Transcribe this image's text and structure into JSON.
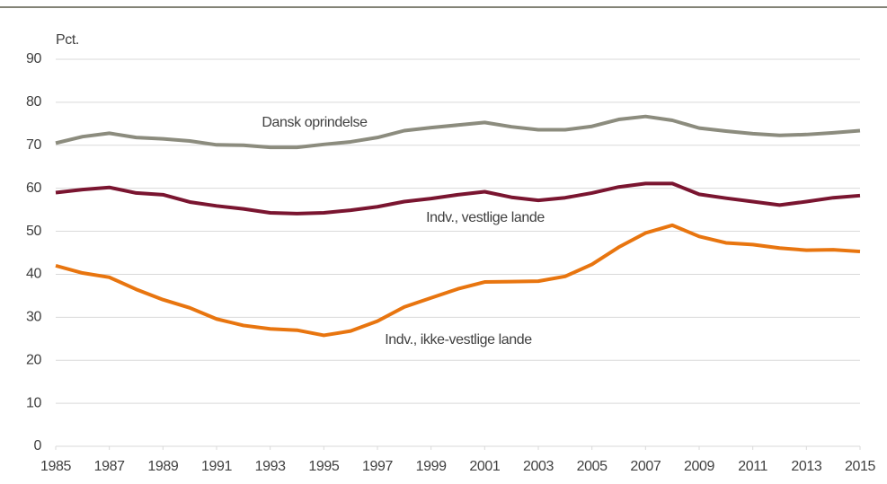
{
  "chart_data": {
    "type": "line",
    "y_axis_label": "Pct.",
    "x": [
      1985,
      1986,
      1987,
      1988,
      1989,
      1990,
      1991,
      1992,
      1993,
      1994,
      1995,
      1996,
      1997,
      1998,
      1999,
      2000,
      2001,
      2002,
      2003,
      2004,
      2005,
      2006,
      2007,
      2008,
      2009,
      2010,
      2011,
      2012,
      2013,
      2014,
      2015
    ],
    "series": [
      {
        "name": "Dansk oprindelse",
        "color": "#8c8c7e",
        "values": [
          70.5,
          72,
          72.8,
          71.8,
          71.5,
          71,
          70.1,
          70,
          69.5,
          69.5,
          70.2,
          70.8,
          71.8,
          73.4,
          74.1,
          74.7,
          75.3,
          74.3,
          73.6,
          73.6,
          74.4,
          76,
          76.7,
          75.8,
          74,
          73.3,
          72.7,
          72.3,
          72.5,
          72.9,
          73.4
        ]
      },
      {
        "name": "Indv., vestlige lande",
        "color": "#7a1530",
        "values": [
          59,
          59.7,
          60.2,
          58.9,
          58.5,
          56.8,
          55.9,
          55.2,
          54.3,
          54.1,
          54.3,
          54.9,
          55.7,
          56.9,
          57.6,
          58.5,
          59.2,
          57.9,
          57.2,
          57.8,
          58.9,
          60.3,
          61.1,
          61.1,
          58.6,
          57.7,
          56.9,
          56.1,
          56.9,
          57.8,
          58.3
        ]
      },
      {
        "name": "Indv., ikke-vestlige lande",
        "color": "#e8750f",
        "values": [
          42,
          40.3,
          39.3,
          36.5,
          34.1,
          32.2,
          29.6,
          28.1,
          27.3,
          27,
          25.8,
          26.8,
          29.1,
          32.4,
          34.5,
          36.6,
          38.2,
          38.3,
          38.4,
          39.5,
          42.3,
          46.3,
          49.6,
          51.4,
          48.8,
          47.3,
          46.9,
          46.1,
          45.6,
          45.7,
          45.3
        ]
      }
    ],
    "xlim": [
      1985,
      2015
    ],
    "xticks": [
      1985,
      1987,
      1989,
      1991,
      1993,
      1995,
      1997,
      1999,
      2001,
      2003,
      2005,
      2007,
      2009,
      2011,
      2013,
      2015
    ],
    "ylim": [
      0,
      90
    ],
    "yticks": [
      0,
      10,
      20,
      30,
      40,
      50,
      60,
      70,
      80,
      90
    ],
    "grid": true
  }
}
